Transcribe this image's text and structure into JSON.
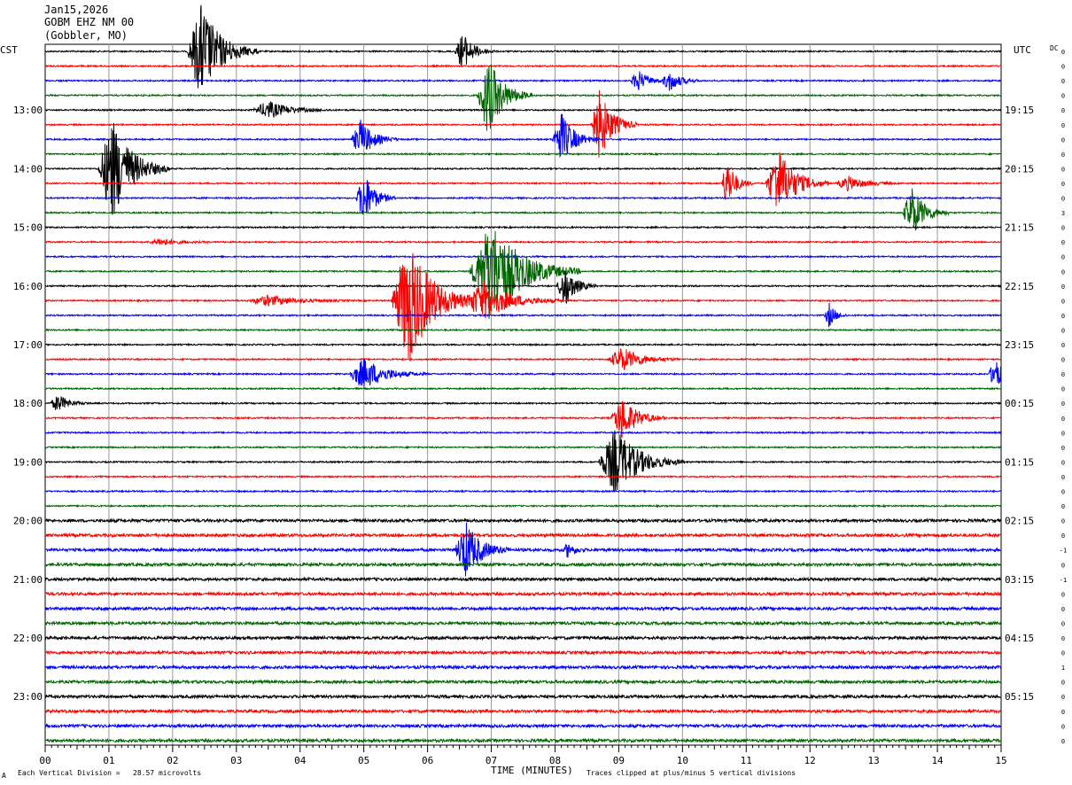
{
  "header": {
    "date": "Jan15,2026",
    "station": "GOBM EHZ NM 00",
    "location": "(Gobbler, MO)"
  },
  "left_tz": "CST",
  "right_tz": "UTC",
  "dc_label": "DC",
  "footer": {
    "scale_note": "Each Vertical Division =   28.57 microvolts",
    "clip_note": "Traces clipped at plus/minus 5 vertical divisions",
    "x_title": "TIME (MINUTES)",
    "corner_mark": "A"
  },
  "colors": {
    "black": "#000000",
    "red": "#ff0000",
    "blue": "#0000ff",
    "green": "#006400",
    "grid": "#999999"
  },
  "chart_data": {
    "type": "line",
    "title": "",
    "xlabel": "TIME (MINUTES)",
    "ylabel": "",
    "xlim": [
      0,
      15
    ],
    "x_ticks": [
      "00",
      "01",
      "02",
      "03",
      "04",
      "05",
      "06",
      "07",
      "08",
      "09",
      "10",
      "11",
      "12",
      "13",
      "14",
      "15"
    ],
    "trace_count": 48,
    "trace_color_cycle": [
      "black",
      "red",
      "blue",
      "green"
    ],
    "left_labels": [
      {
        "trace": 4,
        "text": "13:00"
      },
      {
        "trace": 8,
        "text": "14:00"
      },
      {
        "trace": 12,
        "text": "15:00"
      },
      {
        "trace": 16,
        "text": "16:00"
      },
      {
        "trace": 20,
        "text": "17:00"
      },
      {
        "trace": 24,
        "text": "18:00"
      },
      {
        "trace": 28,
        "text": "19:00"
      },
      {
        "trace": 32,
        "text": "20:00"
      },
      {
        "trace": 36,
        "text": "21:00"
      },
      {
        "trace": 40,
        "text": "22:00"
      },
      {
        "trace": 44,
        "text": "23:00"
      }
    ],
    "right_labels": [
      {
        "trace": 4,
        "text": "19:15"
      },
      {
        "trace": 8,
        "text": "20:15"
      },
      {
        "trace": 12,
        "text": "21:15"
      },
      {
        "trace": 16,
        "text": "22:15"
      },
      {
        "trace": 20,
        "text": "23:15"
      },
      {
        "trace": 24,
        "text": "00:15"
      },
      {
        "trace": 28,
        "text": "01:15"
      },
      {
        "trace": 32,
        "text": "02:15"
      },
      {
        "trace": 36,
        "text": "03:15"
      },
      {
        "trace": 40,
        "text": "04:15"
      },
      {
        "trace": 44,
        "text": "05:15"
      }
    ],
    "dc_offsets": [
      "0",
      "0",
      "0",
      "0",
      "0",
      "0",
      "0",
      "0",
      "0",
      "0",
      "0",
      "3",
      "0",
      "0",
      "0",
      "0",
      "0",
      "0",
      "0",
      "0",
      "0",
      "0",
      "0",
      "0",
      "0",
      "0",
      "0",
      "0",
      "0",
      "0",
      "0",
      "0",
      "0",
      "0",
      "-1",
      "0",
      "-1",
      "0",
      "0",
      "0",
      "0",
      "0",
      "1",
      "0",
      "0",
      "0",
      "0",
      "0"
    ],
    "events": [
      {
        "trace": 0,
        "minute": 2.45,
        "amp": 55,
        "dur": 0.9
      },
      {
        "trace": 0,
        "minute": 6.55,
        "amp": 22,
        "dur": 0.5
      },
      {
        "trace": 3,
        "minute": 6.95,
        "amp": 45,
        "dur": 0.7
      },
      {
        "trace": 2,
        "minute": 9.3,
        "amp": 12,
        "dur": 0.5
      },
      {
        "trace": 2,
        "minute": 9.8,
        "amp": 12,
        "dur": 0.5
      },
      {
        "trace": 4,
        "minute": 3.5,
        "amp": 10,
        "dur": 1.0
      },
      {
        "trace": 5,
        "minute": 8.7,
        "amp": 40,
        "dur": 0.6
      },
      {
        "trace": 6,
        "minute": 4.95,
        "amp": 22,
        "dur": 0.6
      },
      {
        "trace": 6,
        "minute": 8.1,
        "amp": 30,
        "dur": 0.6
      },
      {
        "trace": 8,
        "minute": 1.05,
        "amp": 60,
        "dur": 0.9
      },
      {
        "trace": 9,
        "minute": 10.7,
        "amp": 28,
        "dur": 0.4
      },
      {
        "trace": 9,
        "minute": 11.5,
        "amp": 40,
        "dur": 0.8
      },
      {
        "trace": 9,
        "minute": 12.6,
        "amp": 8,
        "dur": 0.8
      },
      {
        "trace": 10,
        "minute": 5.0,
        "amp": 30,
        "dur": 0.5
      },
      {
        "trace": 11,
        "minute": 13.6,
        "amp": 30,
        "dur": 0.6
      },
      {
        "trace": 13,
        "minute": 1.8,
        "amp": 4,
        "dur": 0.8
      },
      {
        "trace": 15,
        "minute": 7.0,
        "amp": 60,
        "dur": 1.4
      },
      {
        "trace": 16,
        "minute": 8.15,
        "amp": 25,
        "dur": 0.5
      },
      {
        "trace": 17,
        "minute": 5.7,
        "amp": 75,
        "dur": 1.1
      },
      {
        "trace": 17,
        "minute": 6.9,
        "amp": 22,
        "dur": 1.2
      },
      {
        "trace": 17,
        "minute": 3.5,
        "amp": 6,
        "dur": 1.3
      },
      {
        "trace": 18,
        "minute": 12.3,
        "amp": 14,
        "dur": 0.3
      },
      {
        "trace": 21,
        "minute": 9.05,
        "amp": 14,
        "dur": 0.9
      },
      {
        "trace": 22,
        "minute": 5.0,
        "amp": 18,
        "dur": 1.0
      },
      {
        "trace": 22,
        "minute": 14.9,
        "amp": 18,
        "dur": 0.4
      },
      {
        "trace": 24,
        "minute": 0.2,
        "amp": 10,
        "dur": 0.5
      },
      {
        "trace": 25,
        "minute": 9.05,
        "amp": 25,
        "dur": 0.7
      },
      {
        "trace": 28,
        "minute": 8.95,
        "amp": 38,
        "dur": 1.1
      },
      {
        "trace": 34,
        "minute": 6.6,
        "amp": 32,
        "dur": 0.7
      },
      {
        "trace": 34,
        "minute": 8.2,
        "amp": 8,
        "dur": 0.3
      }
    ]
  }
}
